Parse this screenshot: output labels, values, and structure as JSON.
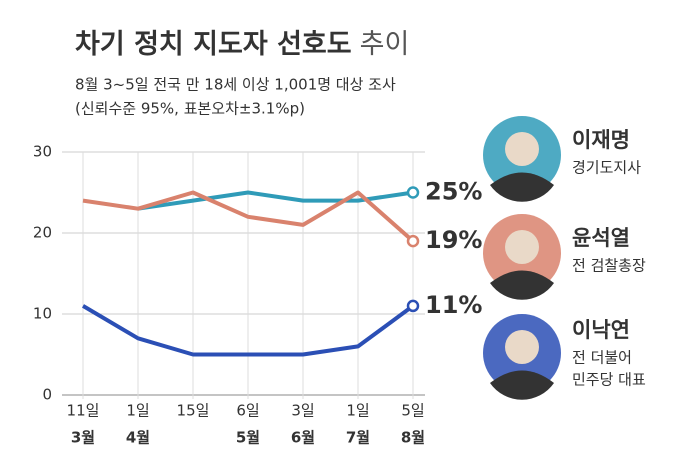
{
  "chart_data": {
    "type": "line",
    "title": "차기 정치 지도자 선호도",
    "title_suffix": "추이",
    "subtitle": "8월 3~5일 전국 만 18세 이상 1,001명 대상 조사",
    "note": "(신뢰수준 95%, 표본오차±3.1%p)",
    "categories": [
      "11일",
      "1일",
      "15일",
      "6일",
      "3일",
      "1일",
      "5일"
    ],
    "months": [
      "3월",
      "4월",
      null,
      "5월",
      "6월",
      "7월",
      "8월"
    ],
    "ylim": [
      0,
      30
    ],
    "yticks": [
      0,
      10,
      20,
      30
    ],
    "grid": true,
    "series": [
      {
        "name": "이재명",
        "role": [
          "경기도지사"
        ],
        "color": "#2f9bb8",
        "values": [
          null,
          23,
          24,
          25,
          24,
          24,
          25
        ],
        "value_labels": [
          null,
          null,
          null,
          null,
          null,
          null,
          "25%"
        ]
      },
      {
        "name": "윤석열",
        "role": [
          "전 검찰총장"
        ],
        "color": "#d9826d",
        "values": [
          24,
          23,
          25,
          22,
          21,
          25,
          19
        ],
        "value_labels": [
          null,
          null,
          null,
          null,
          null,
          null,
          "19%"
        ]
      },
      {
        "name": "이낙연",
        "role": [
          "전 더불어",
          "민주당 대표"
        ],
        "color": "#2b4fb5",
        "values": [
          11,
          7,
          5,
          5,
          5,
          6,
          11
        ],
        "value_labels": [
          null,
          null,
          null,
          null,
          null,
          null,
          "11%"
        ]
      }
    ]
  }
}
